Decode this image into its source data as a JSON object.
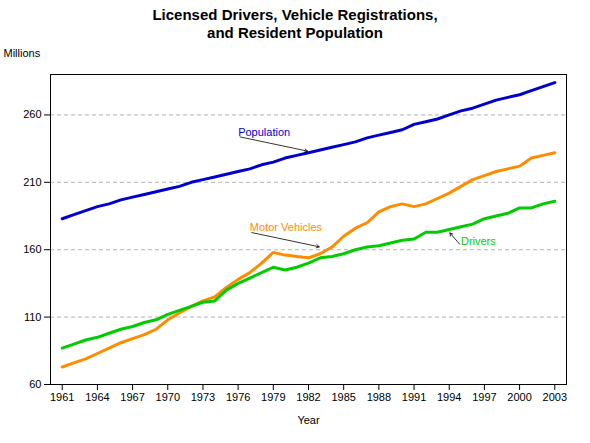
{
  "chart_data": {
    "type": "line",
    "title": "Licensed Drivers, Vehicle Registrations,\nand Resident Population",
    "xlabel": "Year",
    "ylabel": "Millions",
    "x": [
      1961,
      1962,
      1963,
      1964,
      1965,
      1966,
      1967,
      1968,
      1969,
      1970,
      1971,
      1972,
      1973,
      1974,
      1975,
      1976,
      1977,
      1978,
      1979,
      1980,
      1981,
      1982,
      1983,
      1984,
      1985,
      1986,
      1987,
      1988,
      1989,
      1990,
      1991,
      1992,
      1993,
      1994,
      1995,
      1996,
      1997,
      1998,
      1999,
      2000,
      2001,
      2002,
      2003
    ],
    "series": [
      {
        "name": "Population",
        "color": "#0000CD",
        "values": [
          183,
          186,
          189,
          192,
          194,
          197,
          199,
          201,
          203,
          205,
          207,
          210,
          212,
          214,
          216,
          218,
          220,
          223,
          225,
          228,
          230,
          232,
          234,
          236,
          238,
          240,
          243,
          245,
          247,
          249,
          253,
          255,
          257,
          260,
          263,
          265,
          268,
          271,
          273,
          275,
          278,
          281,
          284
        ]
      },
      {
        "name": "Motor Vehicles",
        "color": "#FF8C00",
        "values": [
          73,
          76,
          79,
          83,
          87,
          91,
          94,
          97,
          101,
          108,
          113,
          118,
          122,
          125,
          132,
          138,
          143,
          150,
          158,
          156,
          155,
          154,
          157,
          162,
          170,
          176,
          180,
          188,
          192,
          194,
          192,
          194,
          198,
          202,
          207,
          212,
          215,
          218,
          220,
          222,
          228,
          230,
          232
        ]
      },
      {
        "name": "Drivers",
        "color": "#00CC00",
        "values": [
          87,
          90,
          93,
          95,
          98,
          101,
          103,
          106,
          108,
          112,
          115,
          118,
          121,
          122,
          130,
          135,
          139,
          143,
          147,
          145,
          147,
          150,
          154,
          155,
          157,
          160,
          162,
          163,
          165,
          167,
          168,
          173,
          173,
          175,
          177,
          179,
          183,
          185,
          187,
          191,
          191,
          194,
          196
        ]
      }
    ],
    "xlim": [
      1960,
      2004
    ],
    "xticks": [
      1961,
      1964,
      1967,
      1970,
      1973,
      1976,
      1979,
      1982,
      1985,
      1988,
      1991,
      1994,
      1997,
      2000,
      2003
    ],
    "ylim": [
      60,
      290
    ],
    "yticks": [
      60,
      110,
      160,
      210,
      260
    ],
    "grid": true,
    "annotations": [
      {
        "text": "Population",
        "xy": [
          1982,
          233
        ],
        "xytext": [
          1976,
          244
        ],
        "color": "#0000CD"
      },
      {
        "text": "Motor Vehicles",
        "xy": [
          1983,
          162
        ],
        "xytext": [
          1977,
          173
        ],
        "color": "#FF8C00"
      },
      {
        "text": "Drivers",
        "xy": [
          1994,
          173
        ],
        "xytext": [
          1995,
          163
        ],
        "color": "#00CC00"
      }
    ]
  }
}
